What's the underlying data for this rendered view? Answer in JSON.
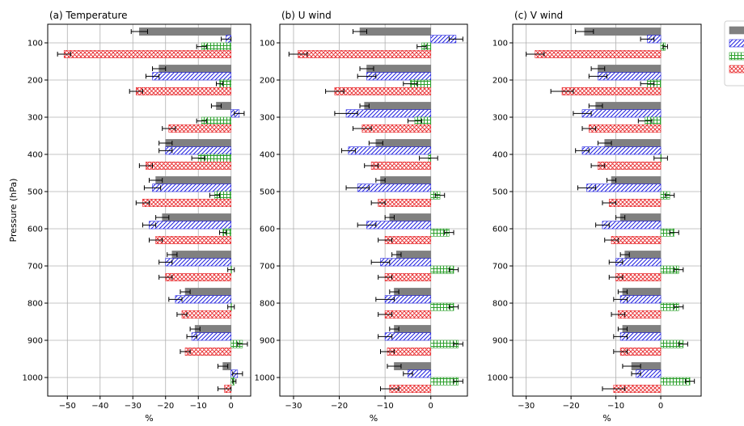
{
  "chart_data": {
    "type": "bar",
    "orientation": "horizontal-grouped",
    "ylabel": "Pressure (hPa)",
    "xlabel": "%",
    "y_levels": [
      100,
      200,
      300,
      400,
      500,
      600,
      700,
      800,
      900,
      1000
    ],
    "y_ticks": [
      "100",
      "200",
      "300",
      "400",
      "500",
      "600",
      "700",
      "800",
      "900",
      "1000"
    ],
    "ylim": [
      1050,
      50
    ],
    "grid": true,
    "legend": "right, top (entries with no visible labels)",
    "series_styles": [
      {
        "fill": "#808080",
        "hatch": "none",
        "edge": "#808080"
      },
      {
        "fill": "#ffffff",
        "hatch": "diagonal",
        "edge": "#1f1fe0",
        "hatch_color": "#1f1fe0"
      },
      {
        "fill": "#ffffff",
        "hatch": "grid",
        "edge": "#2ca02c",
        "hatch_color": "#2ca02c"
      },
      {
        "fill": "#ffffff",
        "hatch": "crosshatch",
        "edge": "#e8282b",
        "hatch_color": "#e8282b"
      }
    ],
    "panels": [
      {
        "title": "(a) Temperature",
        "xlim": [
          -56,
          6
        ],
        "xticks": [
          -50,
          -40,
          -30,
          -20,
          -10,
          0
        ],
        "series": [
          {
            "values": [
              -28,
              -22,
              -4.5,
              -20,
              -23,
              -21,
              -18,
              -14,
              -11,
              -2.5
            ],
            "err": [
              2.5,
              2,
              1.5,
              2,
              2,
              2,
              1.5,
              1.5,
              1.5,
              1.5
            ]
          },
          {
            "values": [
              -1.5,
              -24,
              2.5,
              -20,
              -24,
              -25,
              -20,
              -17,
              -12,
              2
            ],
            "err": [
              1.5,
              2,
              1.5,
              2,
              2.5,
              2,
              2,
              2,
              1.5,
              1.5
            ]
          },
          {
            "values": [
              -9,
              -3.5,
              -9,
              -10,
              -5,
              -2.5,
              0,
              0,
              3.5,
              1
            ],
            "err": [
              1.5,
              1,
              1.5,
              2,
              1.5,
              1,
              1,
              1,
              1.5,
              0.5
            ]
          },
          {
            "values": [
              -51,
              -29,
              -19,
              -26,
              -27,
              -23,
              -20,
              -15,
              -14,
              -2
            ],
            "err": [
              2,
              2,
              2,
              2,
              2,
              2,
              2,
              1.5,
              1.5,
              2
            ]
          }
        ]
      },
      {
        "title": "(b) U wind",
        "xlim": [
          -33,
          8
        ],
        "xticks": [
          -30,
          -20,
          -10,
          0
        ],
        "series": [
          {
            "values": [
              -15.5,
              -14,
              -14.5,
              -12,
              -11,
              -9,
              -7.5,
              -8,
              -8,
              -8
            ],
            "err": [
              1.5,
              1.5,
              1,
              1.5,
              1,
              1,
              1,
              1,
              1,
              1.5
            ]
          },
          {
            "values": [
              5.5,
              -14,
              -18.5,
              -18,
              -16,
              -14,
              -11,
              -10,
              -10,
              -5
            ],
            "err": [
              1.5,
              2,
              2.5,
              1.5,
              2.5,
              2,
              2,
              2,
              1.5,
              1
            ]
          },
          {
            "values": [
              -2,
              -4.5,
              -3.5,
              -0.5,
              2,
              4,
              5,
              5,
              6,
              6
            ],
            "err": [
              1,
              1.5,
              1.5,
              2,
              1,
              1,
              1,
              1,
              1,
              1
            ]
          },
          {
            "values": [
              -29,
              -21,
              -15,
              -13,
              -11.5,
              -10,
              -10,
              -10,
              -9.5,
              -9
            ],
            "err": [
              2,
              2,
              2,
              1.5,
              1.5,
              1.5,
              1.5,
              1.5,
              1.5,
              2
            ]
          }
        ]
      },
      {
        "title": "(c) V wind",
        "xlim": [
          -33,
          9
        ],
        "xticks": [
          -30,
          -20,
          -10,
          0
        ],
        "series": [
          {
            "values": [
              -17,
              -14,
              -14.5,
              -12.5,
              -11,
              -9,
              -8,
              -8.5,
              -8.5,
              -6.5
            ],
            "err": [
              2,
              1.5,
              1.5,
              1.5,
              1,
              1,
              1,
              1,
              1,
              2
            ]
          },
          {
            "values": [
              -3,
              -14,
              -17.5,
              -17.5,
              -16.5,
              -13,
              -10,
              -9,
              -9,
              -5.5
            ],
            "err": [
              1.5,
              2,
              2,
              1.5,
              2,
              1.5,
              1.5,
              1.5,
              1.5,
              1
            ]
          },
          {
            "values": [
              1,
              -3,
              -3.5,
              0,
              2,
              3,
              4,
              4,
              5,
              6.5
            ],
            "err": [
              0.5,
              1.5,
              1.5,
              1.5,
              1,
              1,
              1,
              1,
              1,
              1
            ]
          },
          {
            "values": [
              -28,
              -22,
              -16,
              -14,
              -11.5,
              -11,
              -10,
              -9.5,
              -9,
              -10.5
            ],
            "err": [
              2,
              2.5,
              1.5,
              1.5,
              1.5,
              1.5,
              1.5,
              1.5,
              1.5,
              2.5
            ]
          }
        ]
      }
    ]
  }
}
